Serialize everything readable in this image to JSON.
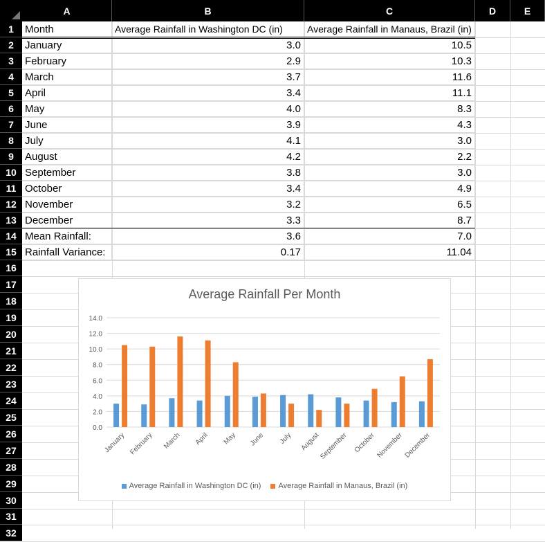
{
  "columns": [
    "A",
    "B",
    "C",
    "D",
    "E"
  ],
  "rows": [
    "1",
    "2",
    "3",
    "4",
    "5",
    "6",
    "7",
    "8",
    "9",
    "10",
    "11",
    "12",
    "13",
    "14",
    "15",
    "16",
    "17",
    "18",
    "19",
    "20",
    "21",
    "22",
    "23",
    "24",
    "25",
    "26",
    "27",
    "28",
    "29",
    "30",
    "31",
    "32"
  ],
  "headers": {
    "a": "Month",
    "b": "Average Rainfall in Washington DC (in)",
    "c": "Average Rainfall in Manaus, Brazil (in)"
  },
  "table": [
    {
      "month": "January",
      "dc": "3.0",
      "manaus": "10.5"
    },
    {
      "month": "February",
      "dc": "2.9",
      "manaus": "10.3"
    },
    {
      "month": "March",
      "dc": "3.7",
      "manaus": "11.6"
    },
    {
      "month": "April",
      "dc": "3.4",
      "manaus": "11.1"
    },
    {
      "month": "May",
      "dc": "4.0",
      "manaus": "8.3"
    },
    {
      "month": "June",
      "dc": "3.9",
      "manaus": "4.3"
    },
    {
      "month": "July",
      "dc": "4.1",
      "manaus": "3.0"
    },
    {
      "month": "August",
      "dc": "4.2",
      "manaus": "2.2"
    },
    {
      "month": "September",
      "dc": "3.8",
      "manaus": "3.0"
    },
    {
      "month": "October",
      "dc": "3.4",
      "manaus": "4.9"
    },
    {
      "month": "November",
      "dc": "3.2",
      "manaus": "6.5"
    },
    {
      "month": "December",
      "dc": "3.3",
      "manaus": "8.7"
    }
  ],
  "summary": [
    {
      "label": "Mean Rainfall:",
      "dc": "3.6",
      "manaus": "7.0"
    },
    {
      "label": "Rainfall Variance:",
      "dc": "0.17",
      "manaus": "11.04"
    }
  ],
  "chart_data": {
    "type": "bar",
    "title": "Average Rainfall Per Month",
    "categories": [
      "January",
      "February",
      "March",
      "April",
      "May",
      "June",
      "July",
      "August",
      "September",
      "October",
      "November",
      "December"
    ],
    "series": [
      {
        "name": "Average Rainfall in Washington DC (in)",
        "color": "#5b9bd5",
        "values": [
          3.0,
          2.9,
          3.7,
          3.4,
          4.0,
          3.9,
          4.1,
          4.2,
          3.8,
          3.4,
          3.2,
          3.3
        ]
      },
      {
        "name": "Average Rainfall in Manaus, Brazil (in)",
        "color": "#ed7d31",
        "values": [
          10.5,
          10.3,
          11.6,
          11.1,
          8.3,
          4.3,
          3.0,
          2.2,
          3.0,
          4.9,
          6.5,
          8.7
        ]
      }
    ],
    "yticks": [
      "0.0",
      "2.0",
      "4.0",
      "6.0",
      "8.0",
      "10.0",
      "12.0",
      "14.0"
    ],
    "ylim": [
      0,
      14
    ],
    "grid": true,
    "legend": "bottom"
  }
}
